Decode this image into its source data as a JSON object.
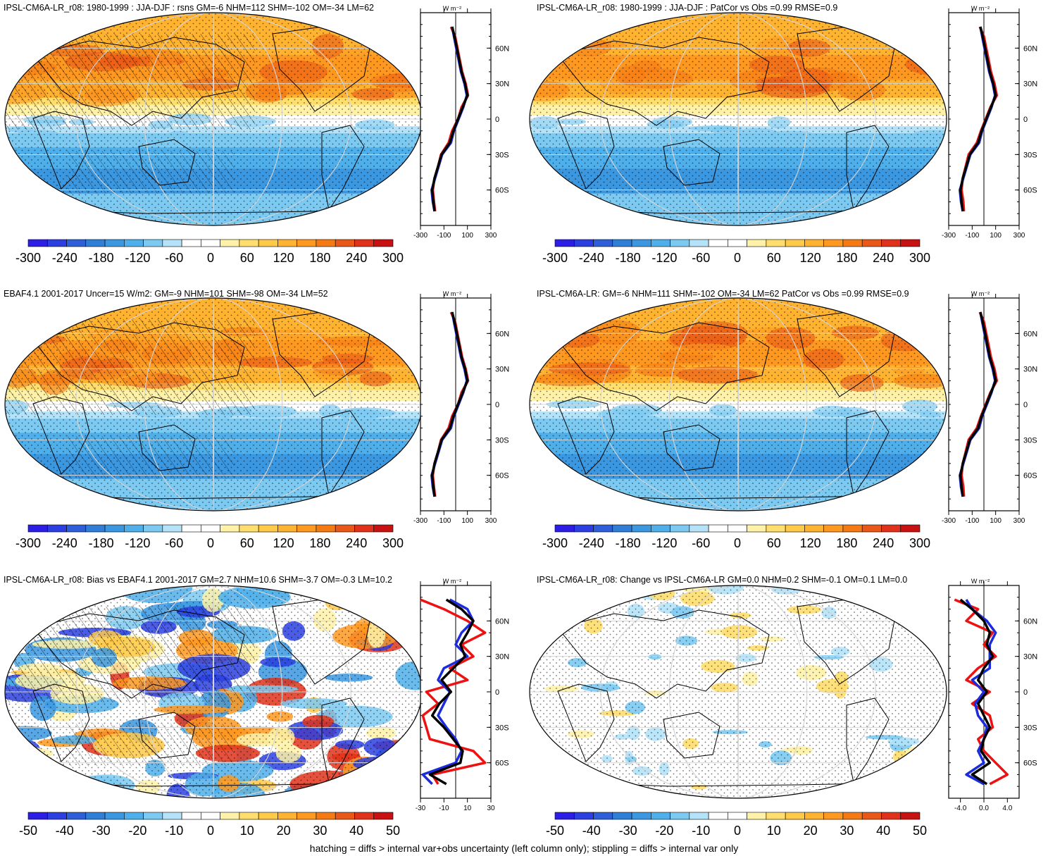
{
  "colors": {
    "map_neg": [
      "#2d1ee6",
      "#2b3fe0",
      "#2f5fd8",
      "#2f7fd8",
      "#3a97e0",
      "#4fafea",
      "#7ccaf2",
      "#b4e2f8"
    ],
    "map_pos": [
      "#fff2a8",
      "#ffde6e",
      "#ffc94a",
      "#ffb330",
      "#ff9820",
      "#f57a14",
      "#ea5818",
      "#e0321a",
      "#c81212"
    ],
    "obs": "#000000",
    "model": "#ee1111",
    "model2": "#1b2bdd"
  },
  "footer": "hatching = diffs > internal var+obs uncertainty (left column only); stippling = diffs > internal var only",
  "panels": [
    {
      "title": "IPSL-CM6A-LR_r08: 1980-1999 : JJA-DJF : rsns GM=-6 NHM=112 SHM=-102 OM=-34 LM=62",
      "map_pattern": "field",
      "hatched": true,
      "colorbar_labels": [
        "-300",
        "-240",
        "-180",
        "-120",
        "-60",
        "0",
        "60",
        "120",
        "180",
        "240",
        "300"
      ],
      "unit": "W m⁻²",
      "chart_data": {
        "type": "line",
        "title": "",
        "xlabel": "W m⁻²",
        "xlim": [
          -300,
          300
        ],
        "xticks": [
          "-300",
          "-100",
          "100",
          "300"
        ],
        "yticks": [
          "60N",
          "30N",
          "0",
          "30S",
          "60S"
        ],
        "series": [
          {
            "role": "obs",
            "x": [
              -30,
              -10,
              10,
              30,
              50,
              80,
              100,
              60,
              20,
              -20,
              -50,
              -120,
              -150,
              -180,
              -200,
              -190,
              -180
            ],
            "y": [
              78,
              70,
              60,
              50,
              40,
              30,
              20,
              10,
              0,
              -10,
              -20,
              -30,
              -40,
              -50,
              -60,
              -70,
              -78
            ]
          },
          {
            "role": "model",
            "x": [
              -40,
              -5,
              15,
              35,
              55,
              85,
              105,
              50,
              20,
              -30,
              -60,
              -125,
              -150,
              -180,
              -195,
              -185,
              -175
            ],
            "y": [
              78,
              70,
              60,
              50,
              40,
              30,
              20,
              10,
              0,
              -10,
              -20,
              -30,
              -40,
              -50,
              -60,
              -70,
              -78
            ]
          },
          {
            "role": "model2",
            "x": [
              -30,
              -15,
              5,
              25,
              45,
              75,
              95,
              65,
              25,
              -15,
              -40,
              -115,
              -145,
              -175,
              -205,
              -195,
              -180
            ],
            "y": [
              78,
              70,
              60,
              50,
              40,
              30,
              20,
              10,
              0,
              -10,
              -20,
              -30,
              -40,
              -50,
              -60,
              -70,
              -78
            ]
          }
        ]
      }
    },
    {
      "title": "IPSL-CM6A-LR_r08: 1980-1999 : JJA-DJF : PatCor vs Obs =0.99 RMSE=0.9",
      "map_pattern": "field",
      "hatched": false,
      "colorbar_labels": [
        "-300",
        "-240",
        "-180",
        "-120",
        "-60",
        "0",
        "60",
        "120",
        "180",
        "240",
        "300"
      ],
      "unit": "W m⁻²",
      "chart_data": {
        "type": "line",
        "title": "",
        "xlabel": "W m⁻²",
        "xlim": [
          -300,
          300
        ],
        "xticks": [
          "-300",
          "-100",
          "100",
          "300"
        ],
        "yticks": [
          "60N",
          "30N",
          "0",
          "30S",
          "60S"
        ],
        "series": [
          {
            "role": "obs",
            "x": [
              -30,
              -10,
              10,
              30,
              50,
              80,
              100,
              60,
              20,
              -20,
              -50,
              -120,
              -150,
              -180,
              -200,
              -190,
              -180
            ],
            "y": [
              78,
              70,
              60,
              50,
              40,
              30,
              20,
              10,
              0,
              -10,
              -20,
              -30,
              -40,
              -50,
              -60,
              -70,
              -78
            ]
          },
          {
            "role": "model",
            "x": [
              -35,
              0,
              20,
              40,
              60,
              90,
              110,
              55,
              15,
              -25,
              -60,
              -130,
              -155,
              -180,
              -190,
              -175,
              -170
            ],
            "y": [
              78,
              70,
              60,
              50,
              40,
              30,
              20,
              10,
              0,
              -10,
              -20,
              -30,
              -40,
              -50,
              -60,
              -70,
              -78
            ]
          },
          {
            "role": "model2",
            "x": [
              -30,
              -15,
              5,
              25,
              45,
              75,
              95,
              65,
              25,
              -15,
              -40,
              -115,
              -145,
              -175,
              -205,
              -195,
              -180
            ],
            "y": [
              78,
              70,
              60,
              50,
              40,
              30,
              20,
              10,
              0,
              -10,
              -20,
              -30,
              -40,
              -50,
              -60,
              -70,
              -78
            ]
          }
        ]
      }
    },
    {
      "title": "EBAF4.1 2001-2017 Uncer=15 W/m2: GM=-9 NHM=101 SHM=-98 OM=-34 LM=52",
      "map_pattern": "field",
      "hatched": true,
      "colorbar_labels": [
        "-300",
        "-240",
        "-180",
        "-120",
        "-60",
        "0",
        "60",
        "120",
        "180",
        "240",
        "300"
      ],
      "unit": "W m⁻²",
      "chart_data": {
        "type": "line",
        "title": "",
        "xlabel": "W m⁻²",
        "xlim": [
          -300,
          300
        ],
        "xticks": [
          "-300",
          "-100",
          "100",
          "300"
        ],
        "yticks": [
          "60N",
          "30N",
          "0",
          "30S",
          "60S"
        ],
        "series": [
          {
            "role": "obs",
            "x": [
              -30,
              -10,
              10,
              30,
              50,
              80,
              100,
              60,
              20,
              -20,
              -50,
              -120,
              -150,
              -180,
              -200,
              -190,
              -180
            ],
            "y": [
              78,
              70,
              60,
              50,
              40,
              30,
              20,
              10,
              0,
              -10,
              -20,
              -30,
              -40,
              -50,
              -60,
              -70,
              -78
            ]
          },
          {
            "role": "model",
            "x": [
              -40,
              -5,
              15,
              35,
              55,
              85,
              105,
              50,
              20,
              -30,
              -60,
              -125,
              -150,
              -180,
              -195,
              -185,
              -175
            ],
            "y": [
              78,
              70,
              60,
              50,
              40,
              30,
              20,
              10,
              0,
              -10,
              -20,
              -30,
              -40,
              -50,
              -60,
              -70,
              -78
            ]
          },
          {
            "role": "model2",
            "x": [
              -30,
              -15,
              5,
              25,
              45,
              75,
              95,
              65,
              25,
              -15,
              -40,
              -115,
              -145,
              -175,
              -205,
              -195,
              -180
            ],
            "y": [
              78,
              70,
              60,
              50,
              40,
              30,
              20,
              10,
              0,
              -10,
              -20,
              -30,
              -40,
              -50,
              -60,
              -70,
              -78
            ]
          }
        ]
      }
    },
    {
      "title": "IPSL-CM6A-LR: GM=-6 NHM=111 SHM=-102 OM=-34 LM=62 PatCor vs Obs =0.99 RMSE=0.9",
      "map_pattern": "field",
      "hatched": false,
      "colorbar_labels": [
        "-300",
        "-240",
        "-180",
        "-120",
        "-60",
        "0",
        "60",
        "120",
        "180",
        "240",
        "300"
      ],
      "unit": "W m⁻²",
      "chart_data": {
        "type": "line",
        "title": "",
        "xlabel": "W m⁻²",
        "xlim": [
          -300,
          300
        ],
        "xticks": [
          "-300",
          "-100",
          "100",
          "300"
        ],
        "yticks": [
          "60N",
          "30N",
          "0",
          "30S",
          "60S"
        ],
        "series": [
          {
            "role": "obs",
            "x": [
              -30,
              -10,
              10,
              30,
              50,
              80,
              100,
              60,
              20,
              -20,
              -50,
              -120,
              -150,
              -180,
              -200,
              -190,
              -180
            ],
            "y": [
              78,
              70,
              60,
              50,
              40,
              30,
              20,
              10,
              0,
              -10,
              -20,
              -30,
              -40,
              -50,
              -60,
              -70,
              -78
            ]
          },
          {
            "role": "model",
            "x": [
              -35,
              0,
              20,
              40,
              60,
              90,
              110,
              55,
              15,
              -25,
              -60,
              -130,
              -155,
              -180,
              -190,
              -175,
              -170
            ],
            "y": [
              78,
              70,
              60,
              50,
              40,
              30,
              20,
              10,
              0,
              -10,
              -20,
              -30,
              -40,
              -50,
              -60,
              -70,
              -78
            ]
          },
          {
            "role": "model2",
            "x": [
              -30,
              -15,
              5,
              25,
              45,
              75,
              95,
              65,
              25,
              -15,
              -40,
              -115,
              -145,
              -175,
              -205,
              -195,
              -180
            ],
            "y": [
              78,
              70,
              60,
              50,
              40,
              30,
              20,
              10,
              0,
              -10,
              -20,
              -30,
              -40,
              -50,
              -60,
              -70,
              -78
            ]
          }
        ]
      }
    },
    {
      "title": "IPSL-CM6A-LR_r08: Bias vs EBAF4.1 2001-2017 GM=2.7 NHM=10.6 SHM=-3.7 OM=-0.3 LM=10.2",
      "map_pattern": "bias",
      "hatched": true,
      "colorbar_labels": [
        "-50",
        "-40",
        "-30",
        "-20",
        "-10",
        "0",
        "10",
        "20",
        "30",
        "40",
        "50"
      ],
      "unit": "W m⁻²",
      "chart_data": {
        "type": "line",
        "title": "",
        "xlabel": "W m⁻²",
        "xlim": [
          -30,
          30
        ],
        "xticks": [
          "-30",
          "-10",
          "10",
          "30"
        ],
        "yticks": [
          "60N",
          "30N",
          "0",
          "30S",
          "60S"
        ],
        "series": [
          {
            "role": "obs",
            "x": [
              -8,
              5,
              15,
              10,
              4,
              8,
              -2,
              -12,
              -4,
              -14,
              -20,
              -10,
              -2,
              6,
              4,
              -22,
              -8
            ],
            "y": [
              78,
              70,
              60,
              50,
              40,
              30,
              20,
              10,
              0,
              -10,
              -20,
              -30,
              -40,
              -50,
              -60,
              -70,
              -78
            ]
          },
          {
            "role": "model",
            "x": [
              -30,
              -10,
              10,
              25,
              5,
              15,
              -5,
              10,
              -25,
              -15,
              -28,
              -25,
              -22,
              15,
              25,
              -20,
              -15
            ],
            "y": [
              78,
              70,
              60,
              50,
              40,
              30,
              20,
              10,
              0,
              -10,
              -20,
              -30,
              -40,
              -50,
              -60,
              -70,
              -78
            ]
          },
          {
            "role": "model2",
            "x": [
              -5,
              10,
              15,
              5,
              0,
              10,
              -10,
              -15,
              -5,
              -10,
              -15,
              -8,
              0,
              5,
              0,
              -28,
              -20
            ],
            "y": [
              78,
              70,
              60,
              50,
              40,
              30,
              20,
              10,
              0,
              -10,
              -20,
              -30,
              -40,
              -50,
              -60,
              -70,
              -78
            ]
          }
        ]
      }
    },
    {
      "title": "IPSL-CM6A-LR_r08: Change vs IPSL-CM6A-LR GM=0.0 NHM=0.2 SHM=-0.1 OM=0.1 LM=0.0",
      "map_pattern": "change",
      "hatched": false,
      "colorbar_labels": [
        "-50",
        "-40",
        "-30",
        "-20",
        "-10",
        "0",
        "10",
        "20",
        "30",
        "40",
        "50"
      ],
      "unit": "W m⁻²",
      "chart_data": {
        "type": "line",
        "title": "",
        "xlabel": "W m⁻²",
        "xlim": [
          -6,
          6
        ],
        "xticks": [
          "-4.0",
          "0.0",
          "4.0"
        ],
        "yticks": [
          "60N",
          "30N",
          "0",
          "30S",
          "60S"
        ],
        "series": [
          {
            "role": "obs",
            "x": [
              -4,
              -2,
              0,
              1,
              0.5,
              1.5,
              0,
              -1,
              0.5,
              -1,
              0,
              1,
              0,
              -0.5,
              1,
              -2,
              0.5
            ],
            "y": [
              78,
              70,
              60,
              50,
              40,
              30,
              20,
              10,
              0,
              -10,
              -20,
              -30,
              -40,
              -50,
              -60,
              -70,
              -78
            ]
          },
          {
            "role": "model",
            "x": [
              -5,
              -1,
              -3,
              1.5,
              0,
              2,
              -1,
              -3,
              1,
              -2,
              1,
              1.5,
              -1,
              0,
              2,
              4,
              1
            ],
            "y": [
              78,
              70,
              60,
              50,
              40,
              30,
              20,
              10,
              0,
              -10,
              -20,
              -30,
              -40,
              -50,
              -60,
              -70,
              -78
            ]
          },
          {
            "role": "model2",
            "x": [
              -3,
              -2,
              0.5,
              2,
              1,
              1,
              1,
              -2,
              0,
              -1.5,
              -1,
              0.5,
              0,
              -1,
              0,
              -3,
              0
            ],
            "y": [
              78,
              70,
              60,
              50,
              40,
              30,
              20,
              10,
              0,
              -10,
              -20,
              -30,
              -40,
              -50,
              -60,
              -70,
              -78
            ]
          }
        ]
      }
    }
  ]
}
